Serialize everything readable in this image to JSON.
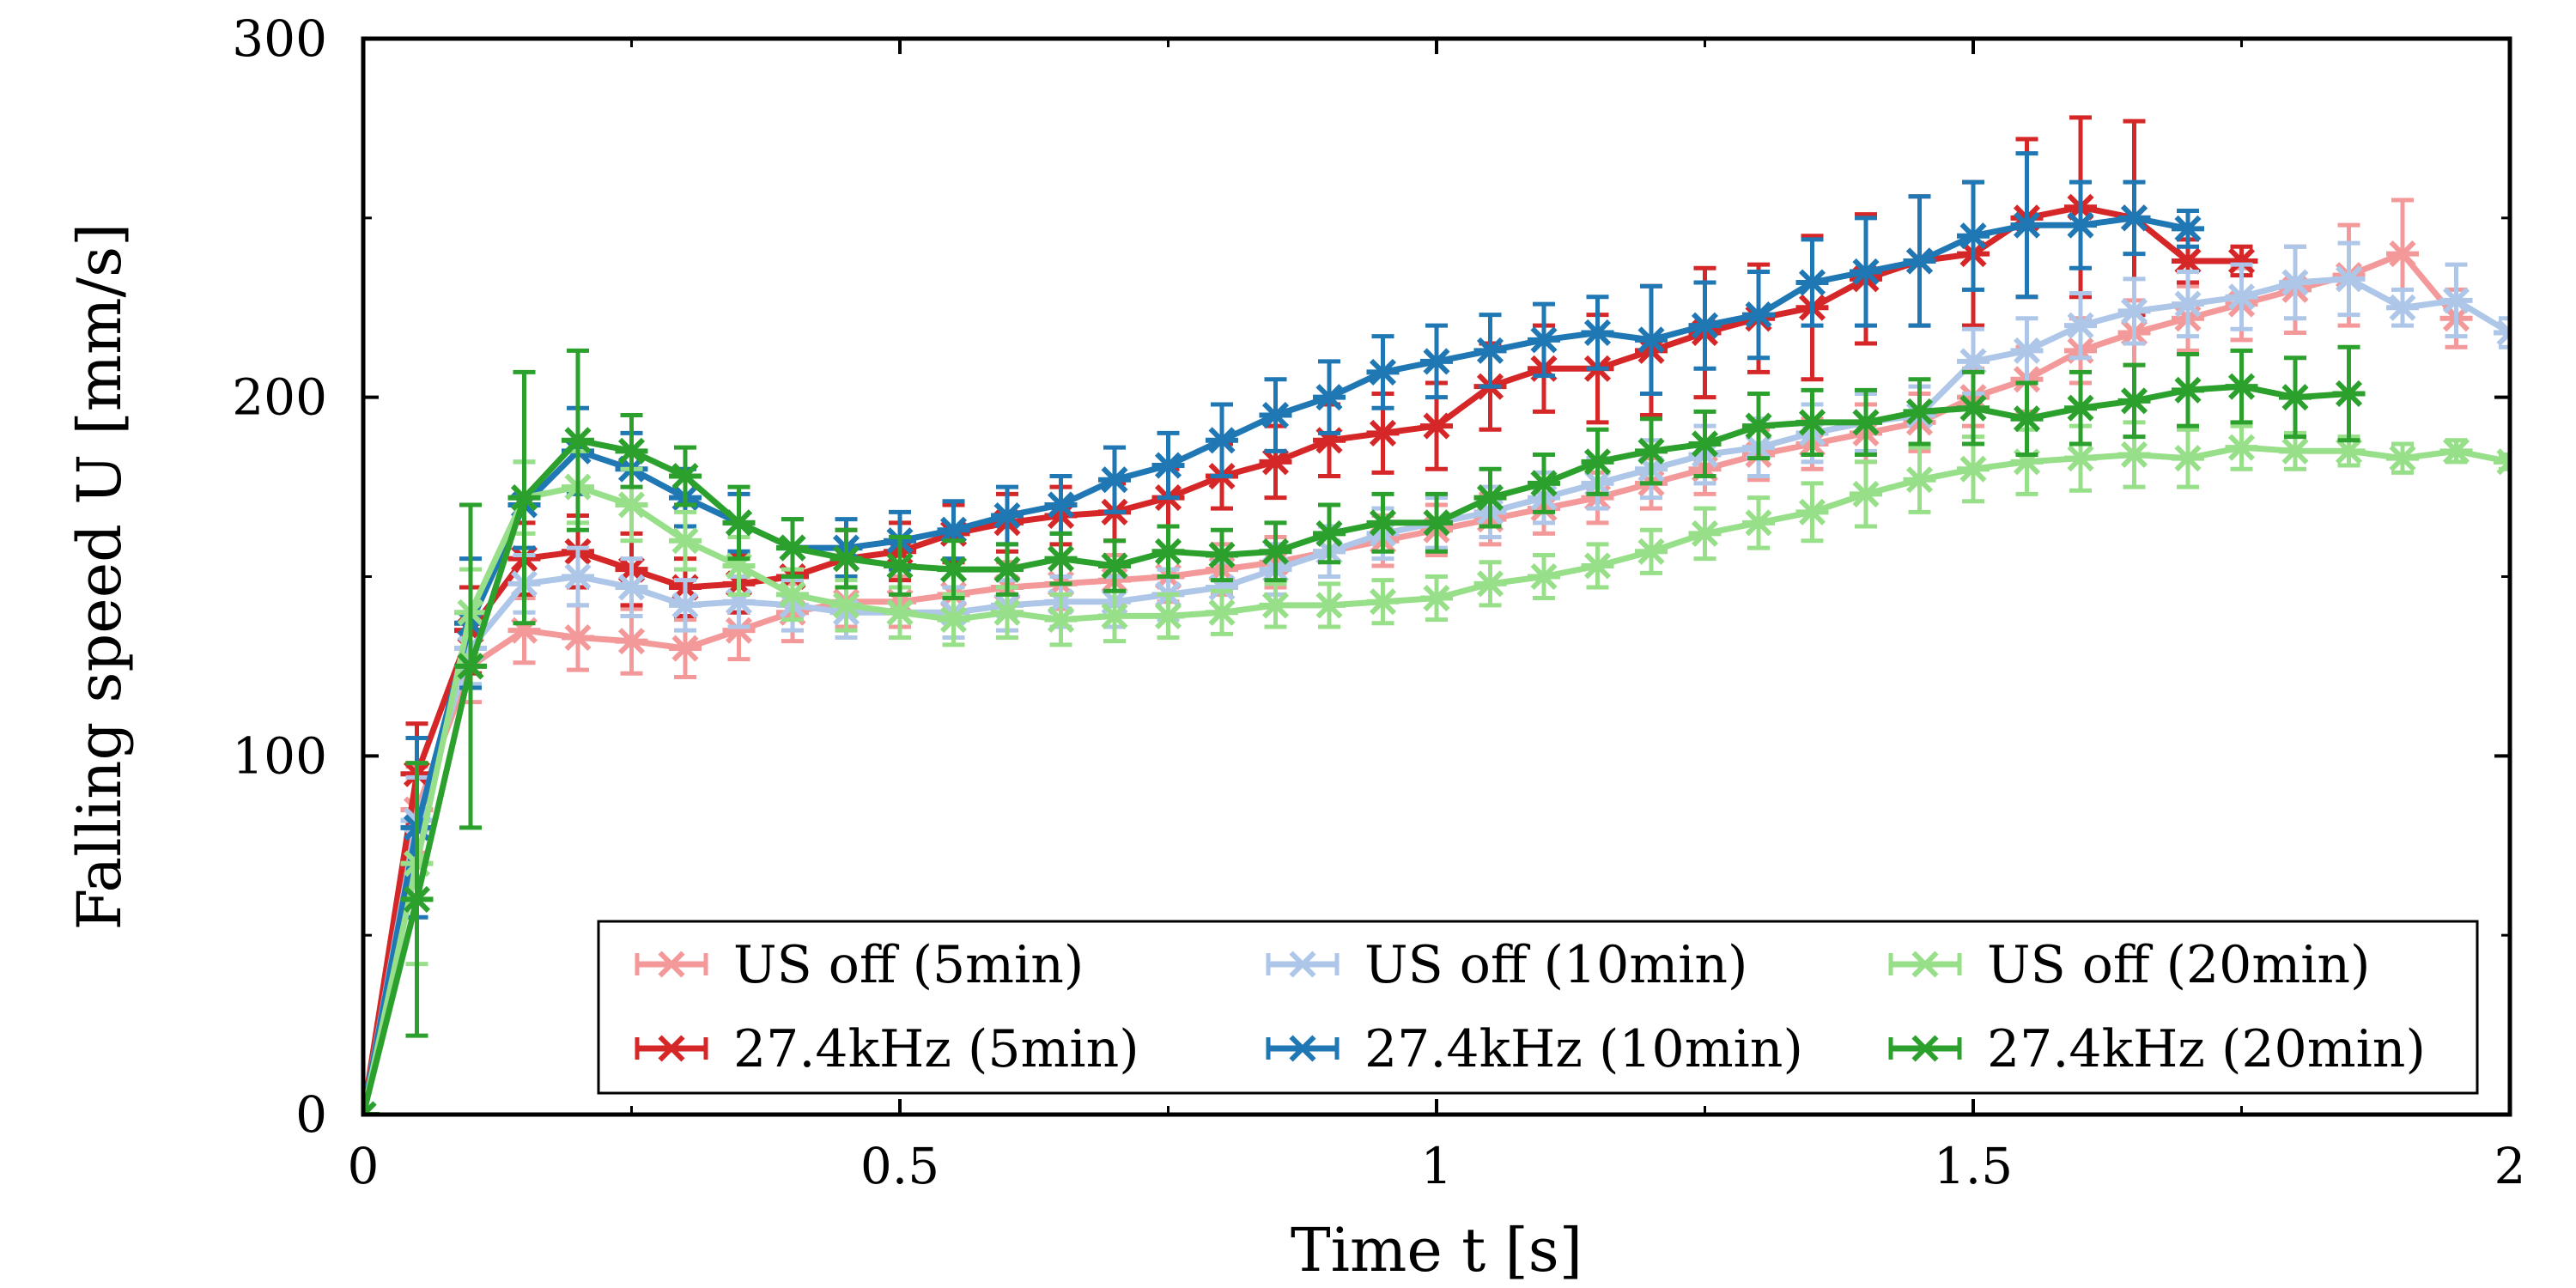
{
  "chart_data": {
    "type": "line",
    "title": "",
    "xlabel": "Time t [s]",
    "ylabel": "Falling speed U [mm/s]",
    "xlim": [
      0,
      2
    ],
    "ylim": [
      0,
      300
    ],
    "xticks": [
      0,
      0.5,
      1,
      1.5,
      2
    ],
    "xtick_labels": [
      "0",
      "0.5",
      "1",
      "1.5",
      "2"
    ],
    "yticks": [
      0,
      100,
      200,
      300
    ],
    "ytick_labels": [
      "0",
      "100",
      "200",
      "300"
    ],
    "grid": false,
    "legend_position": "bottom-right",
    "series": [
      {
        "name": "US off (5min)",
        "color": "#f4999a",
        "marker": "asterisk",
        "x": [
          0,
          0.05,
          0.1,
          0.15,
          0.2,
          0.25,
          0.3,
          0.35,
          0.4,
          0.45,
          0.5,
          0.55,
          0.6,
          0.65,
          0.7,
          0.75,
          0.8,
          0.85,
          0.9,
          0.95,
          1.0,
          1.05,
          1.1,
          1.15,
          1.2,
          1.25,
          1.3,
          1.35,
          1.4,
          1.45,
          1.5,
          1.55,
          1.6,
          1.65,
          1.7,
          1.75,
          1.8,
          1.85,
          1.9,
          1.95
        ],
        "y": [
          0,
          85,
          125,
          135,
          133,
          132,
          130,
          135,
          140,
          143,
          143,
          145,
          147,
          148,
          149,
          150,
          152,
          154,
          157,
          160,
          163,
          166,
          169,
          172,
          176,
          180,
          184,
          187,
          190,
          193,
          200,
          205,
          213,
          218,
          222,
          226,
          230,
          234,
          240,
          222
        ],
        "err": [
          0,
          12,
          10,
          9,
          9,
          9,
          8,
          8,
          8,
          7,
          7,
          7,
          7,
          7,
          7,
          7,
          7,
          7,
          7,
          7,
          7,
          7,
          7,
          7,
          7,
          7,
          7,
          7,
          8,
          8,
          8,
          9,
          9,
          9,
          9,
          10,
          12,
          14,
          15,
          8
        ]
      },
      {
        "name": "27.4kHz (5min)",
        "color": "#d62728",
        "marker": "asterisk",
        "x": [
          0,
          0.05,
          0.1,
          0.15,
          0.2,
          0.25,
          0.3,
          0.35,
          0.4,
          0.45,
          0.5,
          0.55,
          0.6,
          0.65,
          0.7,
          0.75,
          0.8,
          0.85,
          0.9,
          0.95,
          1.0,
          1.05,
          1.1,
          1.15,
          1.2,
          1.25,
          1.3,
          1.35,
          1.4,
          1.45,
          1.5,
          1.55,
          1.6,
          1.65,
          1.7,
          1.75
        ],
        "y": [
          0,
          95,
          135,
          155,
          157,
          152,
          147,
          148,
          150,
          155,
          157,
          162,
          165,
          167,
          168,
          172,
          178,
          182,
          188,
          190,
          192,
          203,
          208,
          208,
          213,
          218,
          222,
          225,
          233,
          238,
          240,
          250,
          253,
          250,
          238,
          238
        ],
        "err": [
          0,
          14,
          12,
          10,
          10,
          10,
          8,
          8,
          8,
          8,
          8,
          8,
          8,
          8,
          8,
          8,
          9,
          10,
          10,
          11,
          12,
          12,
          12,
          15,
          18,
          18,
          15,
          20,
          18,
          18,
          20,
          22,
          25,
          27,
          6,
          4
        ]
      },
      {
        "name": "US off (10min)",
        "color": "#aec7e8",
        "marker": "asterisk",
        "x": [
          0,
          0.05,
          0.1,
          0.15,
          0.2,
          0.25,
          0.3,
          0.35,
          0.4,
          0.45,
          0.5,
          0.55,
          0.6,
          0.65,
          0.7,
          0.75,
          0.8,
          0.85,
          0.9,
          0.95,
          1.0,
          1.05,
          1.1,
          1.15,
          1.2,
          1.25,
          1.3,
          1.35,
          1.4,
          1.45,
          1.5,
          1.55,
          1.6,
          1.65,
          1.7,
          1.75,
          1.8,
          1.85,
          1.9,
          1.95,
          2.0
        ],
        "y": [
          0,
          82,
          130,
          148,
          150,
          147,
          142,
          143,
          142,
          140,
          140,
          140,
          142,
          143,
          143,
          145,
          147,
          152,
          157,
          162,
          165,
          168,
          172,
          176,
          180,
          184,
          186,
          190,
          193,
          195,
          210,
          213,
          220,
          224,
          226,
          228,
          232,
          233,
          225,
          227,
          218
        ],
        "err": [
          0,
          12,
          10,
          8,
          8,
          8,
          7,
          7,
          7,
          7,
          7,
          7,
          7,
          7,
          7,
          7,
          7,
          7,
          7,
          7,
          7,
          7,
          7,
          7,
          8,
          8,
          8,
          8,
          8,
          8,
          9,
          9,
          9,
          9,
          9,
          9,
          10,
          10,
          5,
          10,
          4
        ]
      },
      {
        "name": "27.4kHz (10min)",
        "color": "#1f77b4",
        "marker": "asterisk",
        "x": [
          0,
          0.05,
          0.1,
          0.15,
          0.2,
          0.25,
          0.3,
          0.35,
          0.4,
          0.45,
          0.5,
          0.55,
          0.6,
          0.65,
          0.7,
          0.75,
          0.8,
          0.85,
          0.9,
          0.95,
          1.0,
          1.05,
          1.1,
          1.15,
          1.2,
          1.25,
          1.3,
          1.35,
          1.4,
          1.45,
          1.5,
          1.55,
          1.6,
          1.65,
          1.7
        ],
        "y": [
          0,
          80,
          137,
          170,
          185,
          180,
          172,
          165,
          158,
          158,
          160,
          163,
          167,
          170,
          177,
          181,
          188,
          195,
          200,
          207,
          210,
          213,
          216,
          218,
          216,
          220,
          223,
          232,
          235,
          238,
          245,
          248,
          248,
          250,
          247
        ],
        "err": [
          0,
          25,
          18,
          12,
          12,
          10,
          8,
          8,
          8,
          8,
          8,
          8,
          8,
          8,
          9,
          9,
          10,
          10,
          10,
          10,
          10,
          10,
          10,
          10,
          15,
          12,
          12,
          12,
          15,
          18,
          15,
          20,
          12,
          10,
          5
        ]
      },
      {
        "name": "US off (20min)",
        "color": "#98df8a",
        "marker": "asterisk",
        "x": [
          0,
          0.05,
          0.1,
          0.15,
          0.2,
          0.25,
          0.3,
          0.35,
          0.4,
          0.45,
          0.5,
          0.55,
          0.6,
          0.65,
          0.7,
          0.75,
          0.8,
          0.85,
          0.9,
          0.95,
          1.0,
          1.05,
          1.1,
          1.15,
          1.2,
          1.25,
          1.3,
          1.35,
          1.4,
          1.45,
          1.5,
          1.55,
          1.6,
          1.65,
          1.7,
          1.75,
          1.8,
          1.85,
          1.9,
          1.95,
          2.0
        ],
        "y": [
          0,
          70,
          140,
          172,
          175,
          170,
          160,
          153,
          145,
          142,
          140,
          138,
          140,
          138,
          139,
          139,
          140,
          142,
          142,
          143,
          144,
          148,
          150,
          153,
          157,
          162,
          165,
          168,
          173,
          177,
          180,
          182,
          183,
          184,
          183,
          186,
          185,
          185,
          183,
          185,
          182
        ],
        "err": [
          0,
          28,
          12,
          10,
          10,
          10,
          8,
          8,
          7,
          7,
          7,
          7,
          7,
          7,
          7,
          6,
          6,
          6,
          6,
          6,
          6,
          6,
          6,
          6,
          6,
          7,
          7,
          8,
          9,
          9,
          9,
          9,
          9,
          9,
          8,
          6,
          5,
          4,
          4,
          3,
          2
        ]
      },
      {
        "name": "27.4kHz (20min)",
        "color": "#2ca02c",
        "marker": "asterisk",
        "x": [
          0,
          0.05,
          0.1,
          0.15,
          0.2,
          0.25,
          0.3,
          0.35,
          0.4,
          0.45,
          0.5,
          0.55,
          0.6,
          0.65,
          0.7,
          0.75,
          0.8,
          0.85,
          0.9,
          0.95,
          1.0,
          1.05,
          1.1,
          1.15,
          1.2,
          1.25,
          1.3,
          1.35,
          1.4,
          1.45,
          1.5,
          1.55,
          1.6,
          1.65,
          1.7,
          1.75,
          1.8,
          1.85
        ],
        "y": [
          0,
          60,
          125,
          172,
          188,
          185,
          178,
          165,
          158,
          155,
          153,
          152,
          152,
          155,
          153,
          157,
          156,
          157,
          162,
          165,
          165,
          172,
          176,
          182,
          185,
          187,
          192,
          193,
          193,
          196,
          197,
          194,
          197,
          199,
          202,
          203,
          200,
          201
        ],
        "err": [
          0,
          38,
          45,
          35,
          25,
          10,
          8,
          10,
          8,
          8,
          8,
          8,
          7,
          7,
          7,
          7,
          7,
          8,
          8,
          8,
          8,
          8,
          8,
          9,
          9,
          9,
          9,
          9,
          9,
          9,
          10,
          10,
          10,
          10,
          10,
          10,
          11,
          13
        ]
      }
    ]
  }
}
